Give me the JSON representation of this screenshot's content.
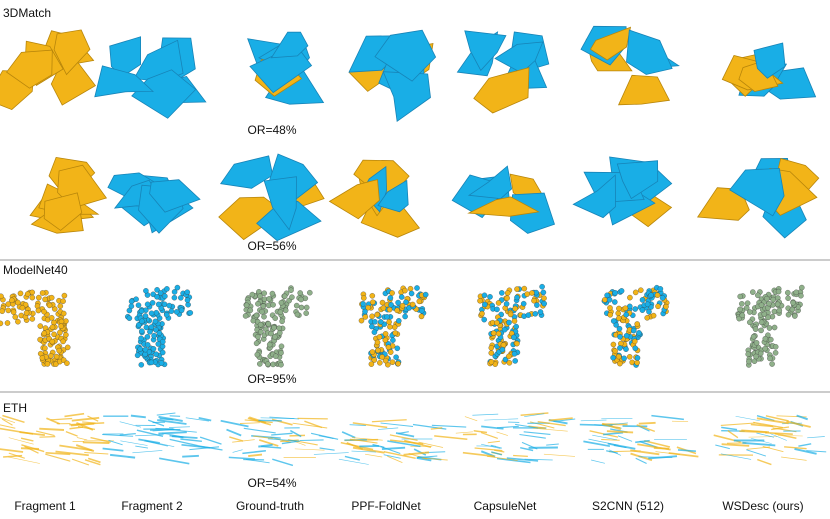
{
  "sections": [
    {
      "label": "3DMatch",
      "rows": [
        {
          "overlap": "OR=48%"
        },
        {
          "overlap": "OR=56%"
        }
      ]
    },
    {
      "label": "ModelNet40",
      "rows": [
        {
          "overlap": "OR=95%"
        }
      ]
    },
    {
      "label": "ETH",
      "rows": [
        {
          "overlap": "OR=54%"
        }
      ]
    }
  ],
  "columns": [
    "Fragment 1",
    "Fragment 2",
    "Ground-truth",
    "PPF-FoldNet",
    "CapsuleNet",
    "S2CNN (512)",
    "WSDesc (ours)"
  ]
}
